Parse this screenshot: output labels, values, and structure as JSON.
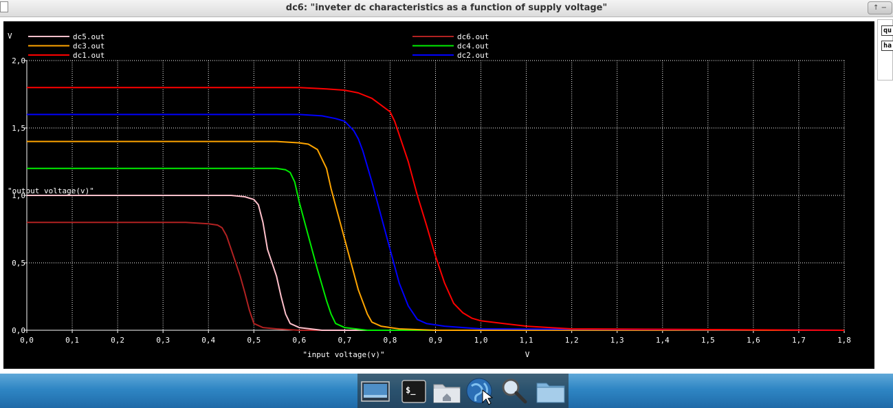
{
  "window": {
    "title": "dc6: \"inveter dc characteristics as a function of supply voltage\"",
    "right_button": "↑ −"
  },
  "side_panel": {
    "buttons": [
      "qu",
      "ha"
    ]
  },
  "dock": {
    "items": [
      {
        "name": "show-desktop",
        "icon": "desktop-icon"
      },
      {
        "name": "terminal",
        "icon": "terminal-icon"
      },
      {
        "name": "home-folder",
        "icon": "home-folder-icon"
      },
      {
        "name": "web-browser",
        "icon": "globe-icon"
      },
      {
        "name": "search",
        "icon": "magnifier-icon"
      },
      {
        "name": "files",
        "icon": "folder-icon"
      }
    ]
  },
  "chart_data": {
    "type": "line",
    "title": "",
    "xlabel": "\"input voltage(v)\"",
    "xunit": "V",
    "ylabel": "\"output voltage(v)\"",
    "yunit": "V",
    "xlim": [
      0,
      1.8
    ],
    "ylim": [
      0,
      2.0
    ],
    "xticks": [
      "0,0",
      "0,1",
      "0,2",
      "0,3",
      "0,4",
      "0,5",
      "0,6",
      "0,7",
      "0,8",
      "0,9",
      "1,0",
      "1,1",
      "1,2",
      "1,3",
      "1,4",
      "1,5",
      "1,6",
      "1,7",
      "1,8"
    ],
    "yticks": [
      "0,0",
      "0,5",
      "1,0",
      "1,5",
      "2,0"
    ],
    "grid": true,
    "background": "#000000",
    "legend": [
      {
        "name": "dc5.out",
        "color": "#ffc0cb",
        "column": 0,
        "row": 0
      },
      {
        "name": "dc3.out",
        "color": "#ffa500",
        "column": 0,
        "row": 1
      },
      {
        "name": "dc1.out",
        "color": "#ff0000",
        "column": 0,
        "row": 2
      },
      {
        "name": "dc6.out",
        "color": "#b22222",
        "column": 1,
        "row": 0
      },
      {
        "name": "dc4.out",
        "color": "#00ee00",
        "column": 1,
        "row": 1
      },
      {
        "name": "dc2.out",
        "color": "#0000ff",
        "column": 1,
        "row": 2
      }
    ],
    "series": [
      {
        "name": "dc6.out",
        "color": "#b22222",
        "x": [
          0,
          0.35,
          0.4,
          0.42,
          0.43,
          0.44,
          0.45,
          0.47,
          0.48,
          0.49,
          0.5,
          0.52,
          0.55,
          0.6,
          1.8
        ],
        "y": [
          0.8,
          0.8,
          0.79,
          0.78,
          0.76,
          0.7,
          0.6,
          0.4,
          0.28,
          0.15,
          0.05,
          0.02,
          0.01,
          0,
          0
        ]
      },
      {
        "name": "dc5.out",
        "color": "#ffc0cb",
        "x": [
          0,
          0.4,
          0.45,
          0.48,
          0.5,
          0.51,
          0.52,
          0.53,
          0.55,
          0.56,
          0.57,
          0.58,
          0.6,
          0.65,
          1.8
        ],
        "y": [
          1.0,
          1.0,
          1.0,
          0.99,
          0.97,
          0.93,
          0.8,
          0.6,
          0.4,
          0.25,
          0.12,
          0.05,
          0.02,
          0,
          0
        ]
      },
      {
        "name": "dc4.out",
        "color": "#00ee00",
        "x": [
          0,
          0.5,
          0.55,
          0.57,
          0.58,
          0.59,
          0.6,
          0.62,
          0.64,
          0.66,
          0.67,
          0.68,
          0.7,
          0.75,
          1.8
        ],
        "y": [
          1.2,
          1.2,
          1.2,
          1.19,
          1.17,
          1.1,
          0.95,
          0.7,
          0.45,
          0.22,
          0.12,
          0.05,
          0.02,
          0,
          0
        ]
      },
      {
        "name": "dc3.out",
        "color": "#ffa500",
        "x": [
          0,
          0.55,
          0.6,
          0.62,
          0.64,
          0.66,
          0.67,
          0.69,
          0.71,
          0.73,
          0.75,
          0.76,
          0.78,
          0.82,
          0.9,
          1.8
        ],
        "y": [
          1.4,
          1.4,
          1.39,
          1.38,
          1.34,
          1.2,
          1.05,
          0.8,
          0.55,
          0.3,
          0.12,
          0.06,
          0.03,
          0.01,
          0,
          0
        ]
      },
      {
        "name": "dc2.out",
        "color": "#0000ff",
        "x": [
          0,
          0.6,
          0.65,
          0.68,
          0.7,
          0.72,
          0.73,
          0.74,
          0.76,
          0.78,
          0.8,
          0.82,
          0.84,
          0.86,
          0.88,
          0.92,
          1.0,
          1.8
        ],
        "y": [
          1.6,
          1.6,
          1.59,
          1.57,
          1.55,
          1.48,
          1.42,
          1.33,
          1.1,
          0.85,
          0.6,
          0.35,
          0.18,
          0.08,
          0.05,
          0.03,
          0.01,
          0
        ]
      },
      {
        "name": "dc1.out",
        "color": "#ff0000",
        "x": [
          0,
          0.6,
          0.66,
          0.7,
          0.73,
          0.76,
          0.78,
          0.8,
          0.81,
          0.82,
          0.84,
          0.86,
          0.88,
          0.9,
          0.92,
          0.94,
          0.96,
          0.98,
          1.0,
          1.05,
          1.1,
          1.2,
          1.8
        ],
        "y": [
          1.8,
          1.8,
          1.79,
          1.78,
          1.76,
          1.72,
          1.67,
          1.62,
          1.55,
          1.45,
          1.25,
          1.0,
          0.78,
          0.55,
          0.35,
          0.2,
          0.13,
          0.09,
          0.07,
          0.05,
          0.03,
          0.01,
          0
        ]
      }
    ]
  }
}
